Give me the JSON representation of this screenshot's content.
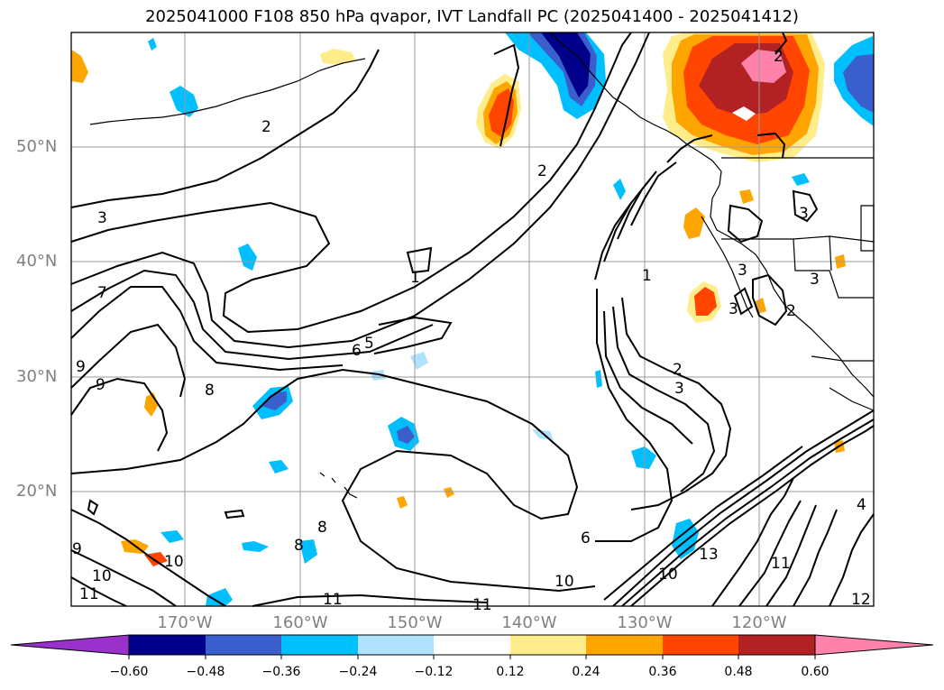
{
  "title": "2025041000 F108 850 hPa qvapor, IVT Landfall PC (2025041400 - 2025041412)",
  "map": {
    "lat_labels": [
      "50°N",
      "40°N",
      "30°N",
      "20°N"
    ],
    "lon_labels": [
      "170°W",
      "160°W",
      "150°W",
      "140°W",
      "130°W",
      "120°W"
    ],
    "contour_labels": [
      "2",
      "2",
      "3",
      "7",
      "1",
      "6",
      "5",
      "9",
      "9",
      "8",
      "1",
      "2",
      "3",
      "3",
      "3",
      "3",
      "2",
      "6",
      "8",
      "8",
      "9",
      "10",
      "10",
      "10",
      "10",
      "11",
      "11",
      "11",
      "11",
      "13",
      "4",
      "12",
      "2",
      "3"
    ]
  },
  "colorbar": {
    "ticks": [
      "−0.60",
      "−0.48",
      "−0.36",
      "−0.24",
      "−0.12",
      "0.12",
      "0.24",
      "0.36",
      "0.48",
      "0.60"
    ],
    "colors": [
      "#9932cc",
      "#00008b",
      "#3a5fcd",
      "#00bfff",
      "#b0e2ff",
      "#ffffff",
      "#ffec8b",
      "#ffa500",
      "#ff4500",
      "#b22222",
      "#ff82ab"
    ]
  }
}
